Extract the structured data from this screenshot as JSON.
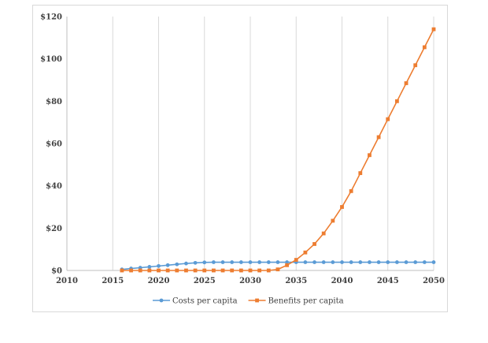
{
  "chart_data": {
    "type": "line",
    "title": "",
    "xlabel": "",
    "ylabel": "",
    "xlim": [
      2010,
      2050
    ],
    "ylim": [
      0,
      120
    ],
    "x_ticks": [
      2010,
      2015,
      2020,
      2025,
      2030,
      2035,
      2040,
      2045,
      2050
    ],
    "y_ticks": [
      0,
      20,
      40,
      60,
      80,
      100,
      120
    ],
    "x_tick_labels": [
      "2010",
      "2015",
      "2020",
      "2025",
      "2030",
      "2035",
      "2040",
      "2045",
      "2050"
    ],
    "y_tick_labels": [
      "$0",
      "$20",
      "$40",
      "$60",
      "$80",
      "$100",
      "$120"
    ],
    "grid": "vertical",
    "legend_position": "bottom",
    "x": [
      2016,
      2017,
      2018,
      2019,
      2020,
      2021,
      2022,
      2023,
      2024,
      2025,
      2026,
      2027,
      2028,
      2029,
      2030,
      2031,
      2032,
      2033,
      2034,
      2035,
      2036,
      2037,
      2038,
      2039,
      2040,
      2041,
      2042,
      2043,
      2044,
      2045,
      2046,
      2047,
      2048,
      2049,
      2050
    ],
    "series": [
      {
        "name": "Costs per capita",
        "color": "#5b9bd5",
        "marker": "circle",
        "values": [
          0.5,
          0.9,
          1.3,
          1.7,
          2.1,
          2.5,
          2.9,
          3.3,
          3.6,
          3.8,
          3.9,
          3.9,
          3.9,
          3.9,
          3.9,
          3.9,
          3.9,
          3.9,
          3.9,
          3.9,
          3.9,
          3.9,
          3.9,
          3.9,
          3.9,
          3.9,
          3.9,
          3.9,
          3.9,
          3.9,
          3.9,
          3.9,
          3.9,
          3.9,
          3.9
        ]
      },
      {
        "name": "Benefits per capita",
        "color": "#ed7d31",
        "marker": "square",
        "values": [
          0,
          0,
          0,
          0,
          0,
          0,
          0,
          0,
          0,
          0,
          0,
          0,
          0,
          0,
          0,
          0,
          0,
          0.5,
          2.5,
          5,
          8.5,
          12.5,
          17.5,
          23.5,
          30,
          37.5,
          46,
          54.5,
          63,
          71.5,
          80,
          88.5,
          97,
          105.5,
          114
        ]
      }
    ]
  }
}
